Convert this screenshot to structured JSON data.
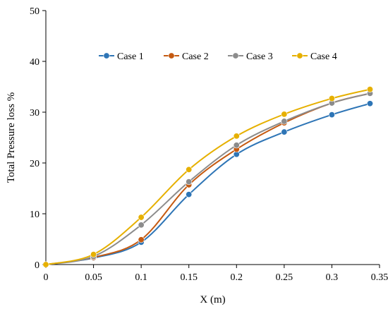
{
  "chart_data": {
    "type": "line",
    "title": "",
    "xlabel": "X (m)",
    "ylabel": "Total Pressure loss %",
    "xlim": [
      0,
      0.35
    ],
    "ylim": [
      0,
      50
    ],
    "x_ticks": [
      "0",
      "0.05",
      "0.1",
      "0.15",
      "0.2",
      "0.25",
      "0.3",
      "0.35"
    ],
    "y_ticks": [
      "0",
      "10",
      "20",
      "30",
      "40",
      "50"
    ],
    "grid": false,
    "legend_position": "top-center",
    "x": [
      0,
      0.05,
      0.1,
      0.15,
      0.2,
      0.25,
      0.3,
      0.34
    ],
    "series": [
      {
        "name": "Case 1",
        "color": "#2E75B6",
        "values": [
          0,
          1.3,
          4.4,
          13.8,
          21.7,
          26.1,
          29.5,
          31.7
        ]
      },
      {
        "name": "Case 2",
        "color": "#C55A11",
        "values": [
          0,
          1.4,
          4.9,
          15.7,
          22.7,
          27.9,
          31.8,
          33.7
        ]
      },
      {
        "name": "Case 3",
        "color": "#8C8C8C",
        "values": [
          0,
          1.6,
          7.8,
          16.3,
          23.5,
          28.2,
          31.8,
          33.7
        ]
      },
      {
        "name": "Case 4",
        "color": "#E6B000",
        "values": [
          0,
          2.0,
          9.3,
          18.7,
          25.3,
          29.6,
          32.7,
          34.5
        ]
      }
    ]
  }
}
